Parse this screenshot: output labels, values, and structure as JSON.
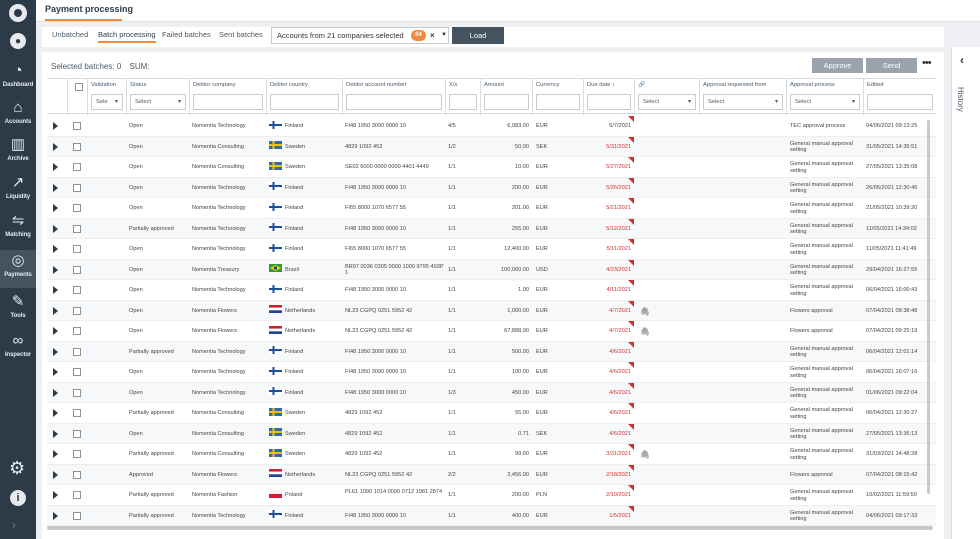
{
  "page_title": "Payment processing",
  "sidebar": [
    {
      "name": "dashboard",
      "label": "Dashboard",
      "icon": "gauge-icon"
    },
    {
      "name": "accounts",
      "label": "Accounts",
      "icon": "bank-icon"
    },
    {
      "name": "archive",
      "label": "Archive",
      "icon": "books-icon"
    },
    {
      "name": "liquidity",
      "label": "Liquidity",
      "icon": "chart-line-icon"
    },
    {
      "name": "matching",
      "label": "Matching",
      "icon": "sliders-icon"
    },
    {
      "name": "payments",
      "label": "Payments",
      "icon": "globe-coin-icon"
    },
    {
      "name": "tools",
      "label": "Tools",
      "icon": "tools-icon"
    },
    {
      "name": "inspector",
      "label": "Inspector",
      "icon": "glasses-icon"
    }
  ],
  "tabs": [
    "Unbatched",
    "Batch processing",
    "Failed batches",
    "Sent batches"
  ],
  "account_selector": {
    "text": "Accounts from 21 companies selected",
    "badge": "84"
  },
  "load_label": "Load",
  "selected_label": "Selected batches: 0",
  "sum_label": "SUM:",
  "approve_label": "Approve",
  "send_label": "Send",
  "more_label": "•••",
  "history_label": "History",
  "headers": {
    "validation": "Validation",
    "status": "Status",
    "company": "Debtor company",
    "country": "Debtor country",
    "account": "Debtor account number",
    "xx": "X/x",
    "amount": "Amount",
    "currency": "Currency",
    "due": "Due date ↓",
    "attach": "🔗",
    "approval_req": "Approval requested from",
    "approval_proc": "Approval process",
    "edited": "Edited"
  },
  "filters": {
    "validation": "Sele",
    "status": "Select",
    "attach": "Select",
    "approval_req": "Select",
    "approval_proc": "Select"
  },
  "rows": [
    {
      "status": "Open",
      "company": "Nomentia Technology",
      "country": "Finland",
      "account": "FI48 1950 3000 0000 10",
      "xx": "4/5",
      "amount": "6,083.00",
      "currency": "EUR",
      "due": "6/7/2021",
      "due_red": false,
      "clip": false,
      "process": "TEC approval process",
      "edited": "04/06/2021 09:13:25"
    },
    {
      "status": "Open",
      "company": "Nomentia Consulting",
      "country": "Sweden",
      "account": "4829 1092 452",
      "xx": "1/2",
      "amount": "50.00",
      "currency": "SEK",
      "due": "5/31/2021",
      "due_red": true,
      "clip": false,
      "process": "General manual approval setting",
      "edited": "31/05/2021 14:36:51"
    },
    {
      "status": "Open",
      "company": "Nomentia Consulting",
      "country": "Sweden",
      "account": "SE02 6000 0000 0000 4401 4449",
      "xx": "1/1",
      "amount": "10.00",
      "currency": "EUR",
      "due": "5/27/2021",
      "due_red": true,
      "clip": false,
      "process": "General manual approval setting",
      "edited": "27/05/2021 13:35:08"
    },
    {
      "status": "Open",
      "company": "Nomentia Technology",
      "country": "Finland",
      "account": "FI48 1950 3000 0000 10",
      "xx": "1/1",
      "amount": "200.00",
      "currency": "EUR",
      "due": "5/26/2021",
      "due_red": true,
      "clip": false,
      "process": "General manual approval setting",
      "edited": "26/05/2021 12:30:45"
    },
    {
      "status": "Open",
      "company": "Nomentia Technology",
      "country": "Finland",
      "account": "FI65 8000 1070 6577 55",
      "xx": "1/1",
      "amount": "201.00",
      "currency": "EUR",
      "due": "5/21/2021",
      "due_red": true,
      "clip": false,
      "process": "General manual approval setting",
      "edited": "21/05/2021 10:39:20"
    },
    {
      "status": "Partially approved",
      "company": "Nomentia Technology",
      "country": "Finland",
      "account": "FI48 1950 3000 0000 10",
      "xx": "1/1",
      "amount": "255.00",
      "currency": "EUR",
      "due": "5/12/2021",
      "due_red": true,
      "clip": false,
      "process": "General manual approval setting",
      "edited": "11/05/2021 14:34:02"
    },
    {
      "status": "Open",
      "company": "Nomentia Technology",
      "country": "Finland",
      "account": "FI65 8000 1070 6577 55",
      "xx": "1/1",
      "amount": "12,400.00",
      "currency": "EUR",
      "due": "5/11/2021",
      "due_red": true,
      "clip": false,
      "process": "General manual approval setting",
      "edited": "11/05/2021 11:41:49"
    },
    {
      "status": "Open",
      "company": "Nomentia Treasury",
      "country": "Brazil",
      "account": "BR97 0036 0305 0000 1000 9795 493P 1",
      "xx": "1/1",
      "amount": "100,000.00",
      "currency": "USD",
      "due": "4/23/2021",
      "due_red": true,
      "clip": false,
      "process": "General manual approval setting",
      "edited": "29/04/2021 16:27:55"
    },
    {
      "status": "Open",
      "company": "Nomentia Technology",
      "country": "Finland",
      "account": "FI48 1950 3000 0000 10",
      "xx": "1/1",
      "amount": "1.00",
      "currency": "EUR",
      "due": "4/11/2021",
      "due_red": true,
      "clip": false,
      "process": "General manual approval setting",
      "edited": "06/04/2021 16:00:43"
    },
    {
      "status": "Open",
      "company": "Nomentia Flowers",
      "country": "Netherlands",
      "account": "NL23 CGPQ 0251 5952 42",
      "xx": "1/1",
      "amount": "1,000.00",
      "currency": "EUR",
      "due": "4/7/2021",
      "due_red": true,
      "clip": true,
      "process": "Flowers approval",
      "edited": "07/04/2021 08:38:48"
    },
    {
      "status": "Open",
      "company": "Nomentia Flowers",
      "country": "Netherlands",
      "account": "NL23 CGPQ 0251 5952 42",
      "xx": "1/1",
      "amount": "67,888.00",
      "currency": "EUR",
      "due": "4/7/2021",
      "due_red": true,
      "clip": true,
      "process": "Flowers approval",
      "edited": "07/04/2021 09:25:19"
    },
    {
      "status": "Partially approved",
      "company": "Nomentia Technology",
      "country": "Finland",
      "account": "FI48 1950 3000 0000 10",
      "xx": "1/1",
      "amount": "500.00",
      "currency": "EUR",
      "due": "4/6/2021",
      "due_red": true,
      "clip": false,
      "process": "General manual approval setting",
      "edited": "06/04/2021 12:01:14"
    },
    {
      "status": "Open",
      "company": "Nomentia Technology",
      "country": "Finland",
      "account": "FI48 1950 3000 0000 10",
      "xx": "1/1",
      "amount": "100.00",
      "currency": "EUR",
      "due": "4/6/2021",
      "due_red": true,
      "clip": false,
      "process": "General manual approval setting",
      "edited": "06/04/2021 16:07:16"
    },
    {
      "status": "Open",
      "company": "Nomentia Technology",
      "country": "Finland",
      "account": "FI48 1950 3000 0000 10",
      "xx": "1/3",
      "amount": "450.00",
      "currency": "EUR",
      "due": "4/6/2021",
      "due_red": true,
      "clip": false,
      "process": "General manual approval setting",
      "edited": "01/06/2021 09:22:04"
    },
    {
      "status": "Partially approved",
      "company": "Nomentia Consulting",
      "country": "Sweden",
      "account": "4829 1092 452",
      "xx": "1/1",
      "amount": "55.00",
      "currency": "EUR",
      "due": "4/6/2021",
      "due_red": true,
      "clip": false,
      "process": "General manual approval setting",
      "edited": "06/04/2021 12:30:27"
    },
    {
      "status": "Open",
      "company": "Nomentia Consulting",
      "country": "Sweden",
      "account": "4829 1092 452",
      "xx": "1/1",
      "amount": "0.71",
      "currency": "SEK",
      "due": "4/6/2021",
      "due_red": true,
      "clip": false,
      "process": "General manual approval setting",
      "edited": "27/05/2021 13:36:13"
    },
    {
      "status": "Partially approved",
      "company": "Nomentia Consulting",
      "country": "Sweden",
      "account": "4829 1092 452",
      "xx": "1/1",
      "amount": "99.00",
      "currency": "EUR",
      "due": "3/31/2021",
      "due_red": true,
      "clip": true,
      "process": "General manual approval setting",
      "edited": "31/03/2021 14:48:28"
    },
    {
      "status": "Approved",
      "company": "Nomentia Flowers",
      "country": "Netherlands",
      "account": "NL23 CGPQ 0251 5952 42",
      "xx": "2/2",
      "amount": "3,456.00",
      "currency": "EUR",
      "due": "2/18/2021",
      "due_red": true,
      "clip": false,
      "process": "Flowers approval",
      "edited": "07/04/2021 08:15:42"
    },
    {
      "status": "Partially approved",
      "company": "Nomentia Fashion",
      "country": "Poland",
      "account": "PL61 1090 1014 0000 0712 1981 2874",
      "xx": "1/1",
      "amount": "200.00",
      "currency": "PLN",
      "due": "2/10/2021",
      "due_red": true,
      "clip": false,
      "process": "General manual approval setting",
      "edited": "10/02/2021 11:59:50"
    },
    {
      "status": "Partially approved",
      "company": "Nomentia Technology",
      "country": "Finland",
      "account": "FI48 1950 3000 0000 10",
      "xx": "1/1",
      "amount": "400.00",
      "currency": "EUR",
      "due": "1/5/2021",
      "due_red": true,
      "clip": false,
      "process": "General manual approval setting",
      "edited": "04/06/2021 09:17:33"
    }
  ]
}
